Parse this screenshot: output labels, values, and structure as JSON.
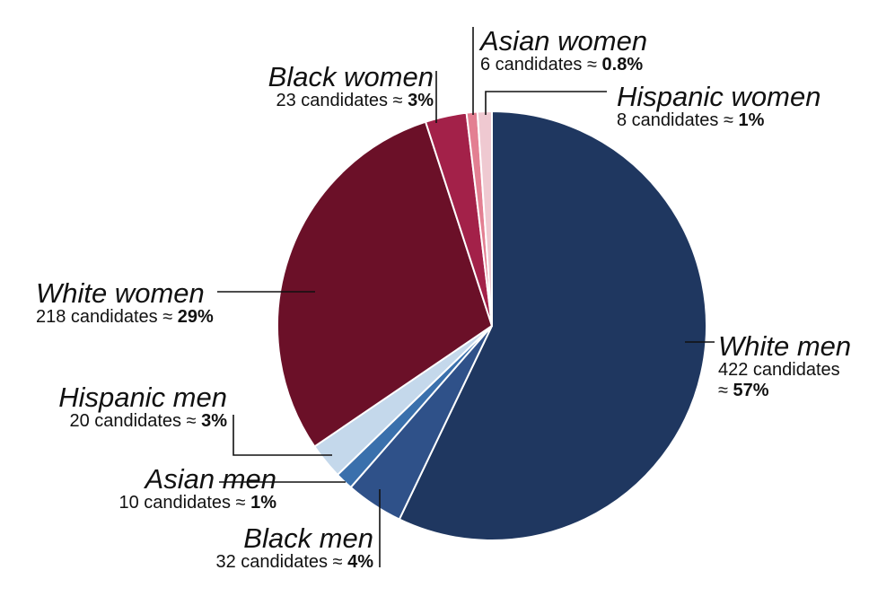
{
  "chart_data": {
    "type": "pie",
    "start_angle_deg": 0,
    "direction": "clockwise",
    "slices": [
      {
        "name": "White men",
        "value": 422,
        "count_text": "422 candidates",
        "approx_text": "≈ ",
        "pct_text": "57%",
        "color": "#1f3760"
      },
      {
        "name": "Black men",
        "value": 32,
        "count_text": "32 candidates ≈ ",
        "pct_text": "4%",
        "color": "#2f5189"
      },
      {
        "name": "Asian men",
        "value": 10,
        "count_text": "10 candidates ≈ ",
        "pct_text": "1%",
        "color": "#3a70ac"
      },
      {
        "name": "Hispanic men",
        "value": 20,
        "count_text": "20 candidates ≈ ",
        "pct_text": "3%",
        "color": "#c4d8eb"
      },
      {
        "name": "White women",
        "value": 218,
        "count_text": "218 candidates ≈ ",
        "pct_text": "29%",
        "color": "#6b1028"
      },
      {
        "name": "Black women",
        "value": 23,
        "count_text": "23 candidates ≈ ",
        "pct_text": "3%",
        "color": "#a32149"
      },
      {
        "name": "Asian women",
        "value": 6,
        "count_text": "6 candidates ≈ ",
        "pct_text": "0.8%",
        "color": "#e37f92"
      },
      {
        "name": "Hispanic women",
        "value": 8,
        "count_text": "8 candidates ≈ ",
        "pct_text": "1%",
        "color": "#efc9d1"
      }
    ]
  }
}
